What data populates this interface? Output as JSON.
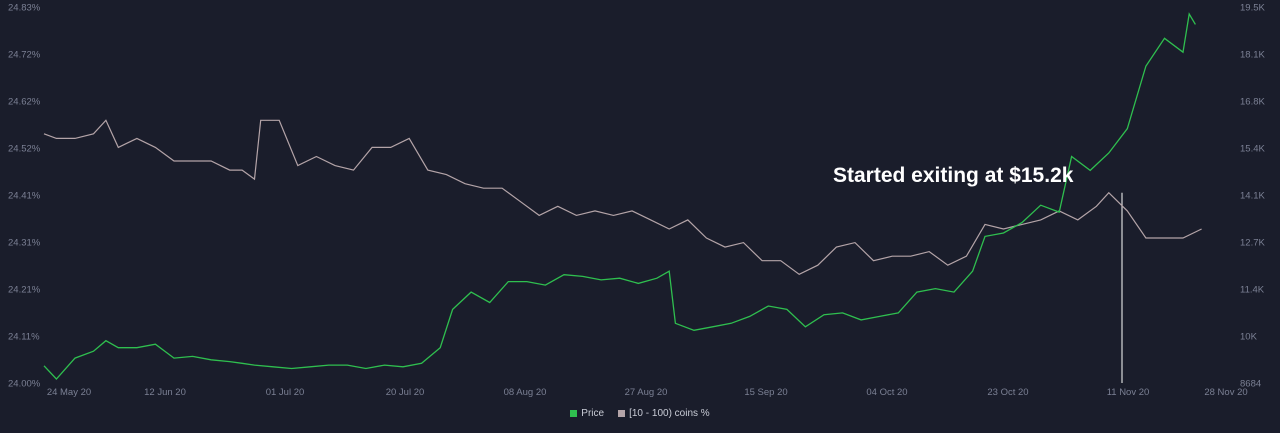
{
  "chart_data": {
    "type": "line",
    "title": "",
    "annotation": "Started exiting at $15.2k",
    "colors": {
      "price": "#2fbf4f",
      "coins": "#b4a4a8",
      "background": "#1a1d2b",
      "marker": "#d9d9d9"
    },
    "x_ticks": [
      "24 May 20",
      "12 Jun 20",
      "01 Jul 20",
      "20 Jul 20",
      "08 Aug 20",
      "27 Aug 20",
      "15 Sep 20",
      "04 Oct 20",
      "23 Oct 20",
      "11 Nov 20",
      "28 Nov 20"
    ],
    "y_left_ticks": [
      "24.00%",
      "24.11%",
      "24.21%",
      "24.31%",
      "24.41%",
      "24.52%",
      "24.62%",
      "24.72%",
      "24.83%"
    ],
    "y_right_ticks": [
      "8684",
      "10K",
      "11.4K",
      "12.7K",
      "14.1K",
      "15.4K",
      "16.8K",
      "18.1K",
      "19.5K"
    ],
    "y_left_range": [
      24.0,
      24.83
    ],
    "y_right_range": [
      8684,
      19500
    ],
    "marker_date": "11 Nov 20",
    "legend": {
      "price_label": "Price",
      "coins_label": "[10 - 100) coins %"
    },
    "series": [
      {
        "name": "[10 - 100) coins %",
        "axis": "left",
        "points": [
          [
            "2020-05-23",
            24.55
          ],
          [
            "2020-05-25",
            24.54
          ],
          [
            "2020-05-28",
            24.54
          ],
          [
            "2020-05-31",
            24.55
          ],
          [
            "2020-06-02",
            24.58
          ],
          [
            "2020-06-04",
            24.52
          ],
          [
            "2020-06-07",
            24.54
          ],
          [
            "2020-06-10",
            24.52
          ],
          [
            "2020-06-13",
            24.49
          ],
          [
            "2020-06-16",
            24.49
          ],
          [
            "2020-06-19",
            24.49
          ],
          [
            "2020-06-22",
            24.47
          ],
          [
            "2020-06-24",
            24.47
          ],
          [
            "2020-06-26",
            24.45
          ],
          [
            "2020-06-27",
            24.58
          ],
          [
            "2020-06-30",
            24.58
          ],
          [
            "2020-07-03",
            24.48
          ],
          [
            "2020-07-06",
            24.5
          ],
          [
            "2020-07-09",
            24.48
          ],
          [
            "2020-07-12",
            24.47
          ],
          [
            "2020-07-15",
            24.52
          ],
          [
            "2020-07-18",
            24.52
          ],
          [
            "2020-07-21",
            24.54
          ],
          [
            "2020-07-24",
            24.47
          ],
          [
            "2020-07-27",
            24.46
          ],
          [
            "2020-07-30",
            24.44
          ],
          [
            "2020-08-02",
            24.43
          ],
          [
            "2020-08-05",
            24.43
          ],
          [
            "2020-08-08",
            24.4
          ],
          [
            "2020-08-11",
            24.37
          ],
          [
            "2020-08-14",
            24.39
          ],
          [
            "2020-08-17",
            24.37
          ],
          [
            "2020-08-20",
            24.38
          ],
          [
            "2020-08-23",
            24.37
          ],
          [
            "2020-08-26",
            24.38
          ],
          [
            "2020-08-29",
            24.36
          ],
          [
            "2020-09-01",
            24.34
          ],
          [
            "2020-09-04",
            24.36
          ],
          [
            "2020-09-07",
            24.32
          ],
          [
            "2020-09-10",
            24.3
          ],
          [
            "2020-09-13",
            24.31
          ],
          [
            "2020-09-16",
            24.27
          ],
          [
            "2020-09-19",
            24.27
          ],
          [
            "2020-09-22",
            24.24
          ],
          [
            "2020-09-25",
            24.26
          ],
          [
            "2020-09-28",
            24.3
          ],
          [
            "2020-10-01",
            24.31
          ],
          [
            "2020-10-04",
            24.27
          ],
          [
            "2020-10-07",
            24.28
          ],
          [
            "2020-10-10",
            24.28
          ],
          [
            "2020-10-13",
            24.29
          ],
          [
            "2020-10-16",
            24.26
          ],
          [
            "2020-10-19",
            24.28
          ],
          [
            "2020-10-22",
            24.35
          ],
          [
            "2020-10-25",
            24.34
          ],
          [
            "2020-10-28",
            24.35
          ],
          [
            "2020-10-31",
            24.36
          ],
          [
            "2020-11-03",
            24.38
          ],
          [
            "2020-11-06",
            24.36
          ],
          [
            "2020-11-09",
            24.39
          ],
          [
            "2020-11-11",
            24.42
          ],
          [
            "2020-11-14",
            24.38
          ],
          [
            "2020-11-17",
            24.32
          ],
          [
            "2020-11-20",
            24.32
          ],
          [
            "2020-11-23",
            24.32
          ],
          [
            "2020-11-26",
            24.34
          ]
        ]
      },
      {
        "name": "Price",
        "axis": "right",
        "points": [
          [
            "2020-05-23",
            9180
          ],
          [
            "2020-05-25",
            8800
          ],
          [
            "2020-05-28",
            9400
          ],
          [
            "2020-05-31",
            9600
          ],
          [
            "2020-06-02",
            9900
          ],
          [
            "2020-06-04",
            9700
          ],
          [
            "2020-06-07",
            9700
          ],
          [
            "2020-06-10",
            9800
          ],
          [
            "2020-06-13",
            9400
          ],
          [
            "2020-06-16",
            9450
          ],
          [
            "2020-06-19",
            9350
          ],
          [
            "2020-06-22",
            9300
          ],
          [
            "2020-06-24",
            9250
          ],
          [
            "2020-06-26",
            9200
          ],
          [
            "2020-06-29",
            9150
          ],
          [
            "2020-07-02",
            9100
          ],
          [
            "2020-07-05",
            9150
          ],
          [
            "2020-07-08",
            9200
          ],
          [
            "2020-07-11",
            9200
          ],
          [
            "2020-07-14",
            9100
          ],
          [
            "2020-07-17",
            9200
          ],
          [
            "2020-07-20",
            9150
          ],
          [
            "2020-07-23",
            9250
          ],
          [
            "2020-07-26",
            9700
          ],
          [
            "2020-07-28",
            10800
          ],
          [
            "2020-07-31",
            11300
          ],
          [
            "2020-08-03",
            11000
          ],
          [
            "2020-08-06",
            11600
          ],
          [
            "2020-08-09",
            11600
          ],
          [
            "2020-08-12",
            11500
          ],
          [
            "2020-08-15",
            11800
          ],
          [
            "2020-08-18",
            11750
          ],
          [
            "2020-08-21",
            11650
          ],
          [
            "2020-08-24",
            11700
          ],
          [
            "2020-08-27",
            11550
          ],
          [
            "2020-08-30",
            11700
          ],
          [
            "2020-09-01",
            11900
          ],
          [
            "2020-09-02",
            10400
          ],
          [
            "2020-09-05",
            10200
          ],
          [
            "2020-09-08",
            10300
          ],
          [
            "2020-09-11",
            10400
          ],
          [
            "2020-09-14",
            10600
          ],
          [
            "2020-09-17",
            10900
          ],
          [
            "2020-09-20",
            10800
          ],
          [
            "2020-09-23",
            10300
          ],
          [
            "2020-09-26",
            10650
          ],
          [
            "2020-09-29",
            10700
          ],
          [
            "2020-10-02",
            10500
          ],
          [
            "2020-10-05",
            10600
          ],
          [
            "2020-10-08",
            10700
          ],
          [
            "2020-10-11",
            11300
          ],
          [
            "2020-10-14",
            11400
          ],
          [
            "2020-10-17",
            11300
          ],
          [
            "2020-10-20",
            11900
          ],
          [
            "2020-10-22",
            12900
          ],
          [
            "2020-10-25",
            13000
          ],
          [
            "2020-10-28",
            13300
          ],
          [
            "2020-10-31",
            13800
          ],
          [
            "2020-11-03",
            13600
          ],
          [
            "2020-11-05",
            15200
          ],
          [
            "2020-11-08",
            14800
          ],
          [
            "2020-11-11",
            15300
          ],
          [
            "2020-11-14",
            16000
          ],
          [
            "2020-11-17",
            17800
          ],
          [
            "2020-11-20",
            18600
          ],
          [
            "2020-11-23",
            18200
          ],
          [
            "2020-11-24",
            19300
          ],
          [
            "2020-11-25",
            19000
          ]
        ]
      }
    ]
  }
}
